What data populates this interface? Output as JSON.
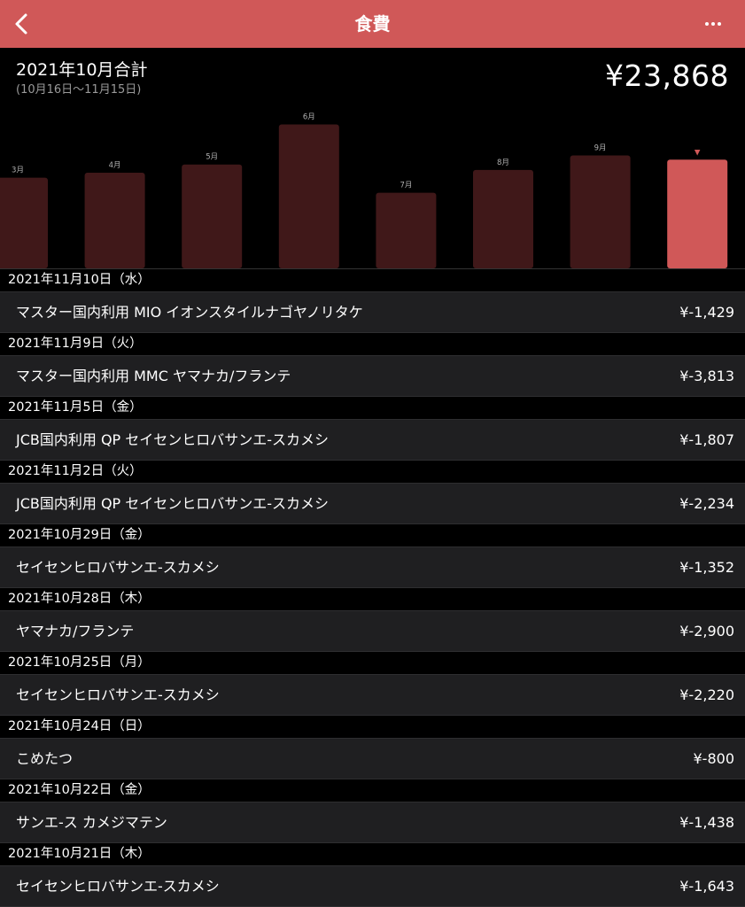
{
  "header": {
    "title": "食費",
    "back_icon": "chevron-left-icon",
    "more_icon": "ellipsis-icon",
    "accent": "#d05858"
  },
  "summary": {
    "label": "2021年10月合計",
    "period": "(10月16日〜11月15日)",
    "total": "¥23,868"
  },
  "chart_data": {
    "type": "bar",
    "categories": [
      "3月",
      "4月",
      "5月",
      "6月",
      "7月",
      "8月",
      "9月",
      ""
    ],
    "values": [
      19900,
      21000,
      22800,
      31600,
      16600,
      21600,
      24800,
      23868
    ],
    "selected_index": 7,
    "selected_marker": "▼",
    "bar_color": "#401819",
    "selected_color": "#d05858",
    "ylim": [
      0,
      35000
    ]
  },
  "transactions": [
    {
      "date": "2021年11月10日（水）",
      "title": "マスター国内利用 MIO イオンスタイルナゴヤノリタケ",
      "amount": "¥-1,429"
    },
    {
      "date": "2021年11月9日（火）",
      "title": "マスター国内利用 MMC ヤマナカ/フランテ",
      "amount": "¥-3,813"
    },
    {
      "date": "2021年11月5日（金）",
      "title": "JCB国内利用 QP セイセンヒロバサンエ-スカメシ",
      "amount": "¥-1,807"
    },
    {
      "date": "2021年11月2日（火）",
      "title": "JCB国内利用 QP セイセンヒロバサンエ-スカメシ",
      "amount": "¥-2,234"
    },
    {
      "date": "2021年10月29日（金）",
      "title": "セイセンヒロバサンエ-スカメシ",
      "amount": "¥-1,352"
    },
    {
      "date": "2021年10月28日（木）",
      "title": "ヤマナカ/フランテ",
      "amount": "¥-2,900"
    },
    {
      "date": "2021年10月25日（月）",
      "title": "セイセンヒロバサンエ-スカメシ",
      "amount": "¥-2,220"
    },
    {
      "date": "2021年10月24日（日）",
      "title": "こめたつ",
      "amount": "¥-800"
    },
    {
      "date": "2021年10月22日（金）",
      "title": "サンエ-ス カメジマテン",
      "amount": "¥-1,438"
    },
    {
      "date": "2021年10月21日（木）",
      "title": "セイセンヒロバサンエ-スカメシ",
      "amount": "¥-1,643"
    }
  ]
}
